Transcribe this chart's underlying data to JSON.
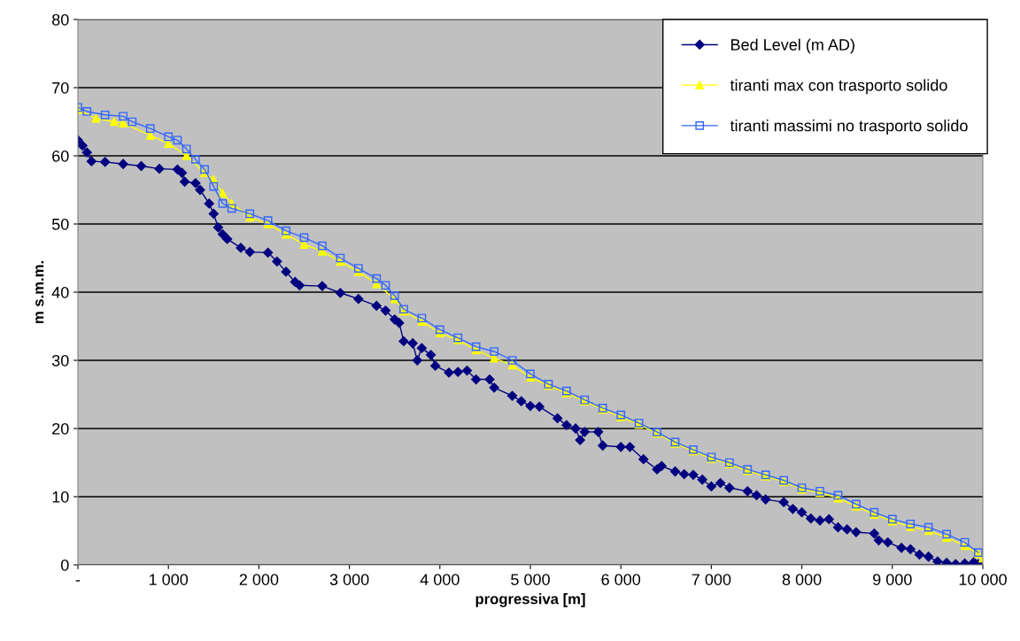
{
  "chart_data": {
    "type": "line",
    "xlabel": "progressiva [m]",
    "ylabel": "m s.m.m.",
    "xlim": [
      0,
      10000
    ],
    "ylim": [
      0,
      80
    ],
    "xticks": [
      {
        "value": 0,
        "label": "-"
      },
      {
        "value": 1000,
        "label": "1 000"
      },
      {
        "value": 2000,
        "label": "2 000"
      },
      {
        "value": 3000,
        "label": "3 000"
      },
      {
        "value": 4000,
        "label": "4 000"
      },
      {
        "value": 5000,
        "label": "5 000"
      },
      {
        "value": 6000,
        "label": "6 000"
      },
      {
        "value": 7000,
        "label": "7 000"
      },
      {
        "value": 8000,
        "label": "8 000"
      },
      {
        "value": 9000,
        "label": "9 000"
      },
      {
        "value": 10000,
        "label": "10 000"
      }
    ],
    "yticks": [
      0,
      10,
      20,
      30,
      40,
      50,
      60,
      70,
      80
    ],
    "grid": "y",
    "legend": "top right",
    "series": [
      {
        "name": "Bed Level (m AD)",
        "color": "#000080",
        "marker": "diamond",
        "x": [
          0,
          50,
          100,
          150,
          300,
          500,
          700,
          900,
          1100,
          1150,
          1180,
          1300,
          1350,
          1450,
          1500,
          1550,
          1600,
          1650,
          1800,
          1900,
          2100,
          2200,
          2300,
          2400,
          2450,
          2700,
          2900,
          3100,
          3300,
          3400,
          3500,
          3550,
          3600,
          3700,
          3750,
          3800,
          3900,
          3950,
          4100,
          4200,
          4300,
          4400,
          4550,
          4600,
          4800,
          4900,
          5000,
          5100,
          5300,
          5400,
          5500,
          5550,
          5600,
          5750,
          5800,
          6000,
          6100,
          6250,
          6400,
          6450,
          6600,
          6700,
          6800,
          6900,
          7000,
          7100,
          7200,
          7400,
          7500,
          7600,
          7800,
          7900,
          8000,
          8100,
          8200,
          8300,
          8400,
          8500,
          8600,
          8800,
          8850,
          8950,
          9100,
          9200,
          9300,
          9400,
          9500,
          9600,
          9700,
          9800,
          9900,
          9950
        ],
        "values": [
          62.3,
          61.5,
          60.5,
          59.2,
          59.1,
          58.8,
          58.5,
          58.1,
          58.0,
          57.5,
          56.2,
          56.0,
          55,
          53,
          51.5,
          49.5,
          48.5,
          47.8,
          46.5,
          45.9,
          45.8,
          44.5,
          43,
          41.5,
          41,
          40.9,
          39.9,
          39,
          38,
          37.3,
          36,
          35.5,
          32.8,
          32.5,
          30,
          31.8,
          30.8,
          29.2,
          28.2,
          28.3,
          28.5,
          27.2,
          27.2,
          26,
          24.8,
          24,
          23.3,
          23.2,
          21.5,
          20.5,
          20.0,
          18.3,
          19.5,
          19.5,
          17.5,
          17.3,
          17.3,
          15.5,
          14,
          14.5,
          13.7,
          13.3,
          13.2,
          12.5,
          11.5,
          12,
          11.3,
          10.8,
          10.2,
          9.6,
          9.2,
          8.2,
          7.7,
          6.8,
          6.5,
          6.7,
          5.5,
          5.2,
          4.8,
          4.6,
          3.6,
          3.3,
          2.5,
          2.3,
          1.5,
          1.2,
          0.5,
          0.3,
          0.1,
          0.2,
          0.4,
          0.1
        ]
      },
      {
        "name": "tiranti max con trasporto solido",
        "color": "#ffff00",
        "marker": "triangle",
        "x": [
          0,
          200,
          400,
          500,
          800,
          1000,
          1200,
          1400,
          1500,
          1600,
          1700,
          1900,
          2100,
          2300,
          2500,
          2700,
          2900,
          3100,
          3300,
          3500,
          3600,
          3800,
          4000,
          4200,
          4400,
          4600,
          4800,
          5000,
          5200,
          5400,
          5600,
          5800,
          6000,
          6200,
          6400,
          6600,
          6800,
          7000,
          7200,
          7400,
          7600,
          7800,
          8000,
          8200,
          8400,
          8600,
          8800,
          9000,
          9200,
          9400,
          9600,
          9800,
          9950,
          10000
        ],
        "values": [
          66.8,
          65.5,
          65,
          64.8,
          63,
          61.8,
          60,
          57.5,
          56.5,
          54.5,
          53,
          51.0,
          50.0,
          48.5,
          47,
          46,
          44.5,
          43,
          41.2,
          39,
          37.2,
          35.7,
          34,
          33,
          31.5,
          30.3,
          29.3,
          27.5,
          26.3,
          25.2,
          24,
          22.8,
          21.7,
          20.6,
          19.3,
          17.8,
          16.7,
          15.6,
          14.8,
          13.8,
          13.0,
          12.2,
          11.1,
          10.6,
          9.8,
          8.6,
          7.4,
          6.4,
          5.6,
          5.0,
          4.0,
          2.8,
          1.6,
          1.0
        ]
      },
      {
        "name": "tiranti massimi no trasporto solido",
        "color": "#3366ff",
        "marker": "square",
        "x": [
          0,
          100,
          300,
          500,
          600,
          800,
          1000,
          1100,
          1200,
          1300,
          1400,
          1500,
          1600,
          1700,
          1900,
          2100,
          2300,
          2500,
          2700,
          2900,
          3100,
          3300,
          3400,
          3500,
          3600,
          3800,
          4000,
          4200,
          4400,
          4600,
          4800,
          5000,
          5200,
          5400,
          5600,
          5800,
          6000,
          6200,
          6400,
          6600,
          6800,
          7000,
          7200,
          7400,
          7600,
          7800,
          8000,
          8200,
          8400,
          8600,
          8800,
          9000,
          9200,
          9400,
          9600,
          9800,
          9950
        ],
        "values": [
          67.1,
          66.5,
          66.0,
          65.8,
          65.0,
          64.0,
          62.8,
          62.3,
          61,
          59.5,
          58,
          55.5,
          53,
          52.3,
          51.5,
          50.5,
          49,
          48,
          46.8,
          45,
          43.5,
          42,
          41,
          39.5,
          37.5,
          36.2,
          34.5,
          33.3,
          32,
          31.3,
          30.0,
          28,
          26.5,
          25.5,
          24.2,
          23,
          22,
          20.8,
          19.5,
          18,
          16.9,
          15.8,
          15,
          14,
          13.2,
          12.4,
          11.3,
          10.8,
          10.2,
          8.9,
          7.7,
          6.7,
          6,
          5.5,
          4.5,
          3.3,
          1.8
        ]
      }
    ]
  }
}
